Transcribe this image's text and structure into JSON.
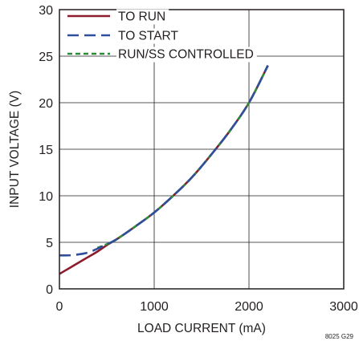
{
  "chart_data": {
    "type": "line",
    "title": "",
    "xlabel": "LOAD CURRENT (mA)",
    "ylabel": "INPUT VOLTAGE (V)",
    "xlim": [
      0,
      3000
    ],
    "ylim": [
      0,
      30
    ],
    "x_ticks": [
      "0",
      "1000",
      "2000",
      "3000"
    ],
    "y_ticks": [
      "0",
      "5",
      "10",
      "15",
      "20",
      "25",
      "30"
    ],
    "grid": true,
    "legend_position": "top-left",
    "note": "8025 G29",
    "series": [
      {
        "name": "TO RUN",
        "color": "#8a1c2b",
        "style": "solid",
        "x": [
          0,
          100,
          200,
          300,
          400,
          500,
          600,
          800,
          1000,
          1200,
          1400,
          1600,
          1800,
          2000,
          2200
        ],
        "y": [
          1.6,
          2.2,
          2.8,
          3.4,
          4.0,
          4.7,
          5.3,
          6.7,
          8.2,
          10.0,
          12.0,
          14.4,
          17.0,
          20.0,
          24.0
        ]
      },
      {
        "name": "TO START",
        "color": "#2e4f9a",
        "style": "dashed",
        "x": [
          0,
          100,
          200,
          300,
          400,
          500,
          600,
          800,
          1000,
          1200,
          1400,
          1600,
          1800,
          2000,
          2200
        ],
        "y": [
          3.6,
          3.6,
          3.7,
          3.9,
          4.3,
          4.8,
          5.3,
          6.7,
          8.2,
          10.0,
          12.0,
          14.4,
          17.0,
          20.0,
          24.0
        ]
      },
      {
        "name": "RUN/SS CONTROLLED",
        "color": "#2e8b3a",
        "style": "dashed",
        "x": [
          400,
          500,
          600,
          800,
          1000,
          1200,
          1400,
          1600,
          1800,
          2000,
          2200
        ],
        "y": [
          4.4,
          4.8,
          5.3,
          6.7,
          8.2,
          10.0,
          12.0,
          14.4,
          17.0,
          20.0,
          24.0
        ]
      }
    ]
  }
}
